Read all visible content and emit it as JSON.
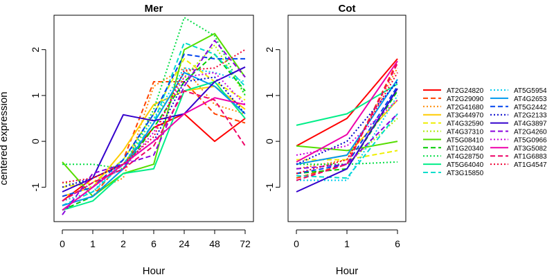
{
  "figure": {
    "ylabel": "centered expression",
    "xlabel": "Hour"
  },
  "chart_data": [
    {
      "type": "line",
      "title": "Mer",
      "xlabel": "Hour",
      "ylabel": "centered expression",
      "categories": [
        "0",
        "1",
        "2",
        "6",
        "24",
        "48",
        "72"
      ],
      "ylim": [
        -1.75,
        2.75
      ],
      "yticks": [
        -1,
        0,
        1,
        2
      ],
      "grid": false,
      "series": [
        {
          "name": "AT2G24820",
          "color": "#ff0000",
          "dash": "solid",
          "values": [
            -1.3,
            -0.8,
            -0.5,
            0.3,
            0.6,
            0.0,
            0.5
          ]
        },
        {
          "name": "AT2G29090",
          "color": "#ff4400",
          "dash": "dashed",
          "values": [
            -1.4,
            -1.2,
            -0.4,
            1.3,
            1.3,
            0.6,
            0.4
          ]
        },
        {
          "name": "AT2G41680",
          "color": "#ff8800",
          "dash": "dotted",
          "values": [
            -1.3,
            -1.1,
            -0.8,
            1.2,
            1.6,
            0.8,
            0.6
          ]
        },
        {
          "name": "AT3G44970",
          "color": "#ffcc00",
          "dash": "solid",
          "values": [
            -1.2,
            -1.0,
            -0.2,
            0.8,
            1.1,
            1.2,
            0.7
          ]
        },
        {
          "name": "AT4G32590",
          "color": "#eeee00",
          "dash": "dashed",
          "values": [
            -1.0,
            -0.9,
            -0.4,
            0.6,
            1.8,
            1.3,
            0.9
          ]
        },
        {
          "name": "AT4G37310",
          "color": "#aaee00",
          "dash": "dotted",
          "values": [
            -0.9,
            -1.0,
            -0.5,
            0.5,
            1.4,
            2.1,
            1.0
          ]
        },
        {
          "name": "AT5G08410",
          "color": "#55dd00",
          "dash": "solid",
          "values": [
            -0.45,
            -1.2,
            -0.7,
            -0.5,
            2.0,
            2.35,
            1.4
          ]
        },
        {
          "name": "AT1G20340",
          "color": "#00cc00",
          "dash": "dashed",
          "values": [
            -1.5,
            -1.2,
            -0.6,
            0.3,
            1.3,
            1.9,
            1.1
          ]
        },
        {
          "name": "AT4G28750",
          "color": "#00dd44",
          "dash": "dotted",
          "values": [
            -0.5,
            -0.5,
            -0.6,
            0.7,
            2.7,
            2.3,
            1.0
          ]
        },
        {
          "name": "AT5G64040",
          "color": "#00ee88",
          "dash": "solid",
          "values": [
            -1.5,
            -1.3,
            -0.7,
            -0.6,
            1.1,
            1.3,
            0.5
          ]
        },
        {
          "name": "AT3G15850",
          "color": "#00ddcc",
          "dash": "dashed",
          "values": [
            -1.4,
            -1.1,
            -0.5,
            0.4,
            2.15,
            1.9,
            1.2
          ]
        },
        {
          "name": "AT5G5954",
          "color": "#00ccee",
          "dash": "dotted",
          "values": [
            -1.3,
            -1.1,
            -0.4,
            0.5,
            1.6,
            1.5,
            1.3
          ]
        },
        {
          "name": "AT4G2653",
          "color": "#0099ee",
          "dash": "solid",
          "values": [
            -1.4,
            -1.2,
            -0.6,
            0.4,
            1.5,
            1.2,
            0.6
          ]
        },
        {
          "name": "AT5G2442",
          "color": "#0044ee",
          "dash": "dashed",
          "values": [
            -1.2,
            -1.0,
            -0.4,
            0.6,
            1.9,
            1.8,
            1.8
          ]
        },
        {
          "name": "AT2G2133",
          "color": "#0000cc",
          "dash": "dotted",
          "values": [
            -1.0,
            -0.8,
            -0.5,
            0.0,
            1.3,
            1.4,
            0.6
          ]
        },
        {
          "name": "AT4G3897",
          "color": "#3300cc",
          "dash": "solid",
          "values": [
            -1.1,
            -0.8,
            0.58,
            0.45,
            0.6,
            1.3,
            1.62
          ]
        },
        {
          "name": "AT2G4260",
          "color": "#8800dd",
          "dash": "dashed",
          "values": [
            -1.6,
            -0.7,
            -0.5,
            -0.3,
            1.2,
            2.2,
            1.4
          ]
        },
        {
          "name": "AT5G0966",
          "color": "#cc00dd",
          "dash": "dotted",
          "values": [
            -1.3,
            -0.9,
            -0.6,
            0.2,
            1.4,
            1.5,
            0.8
          ]
        },
        {
          "name": "AT3G5082",
          "color": "#ee00aa",
          "dash": "solid",
          "values": [
            -1.5,
            -1.0,
            -0.5,
            0.0,
            0.6,
            0.95,
            0.8
          ]
        },
        {
          "name": "AT1G6883",
          "color": "#ee0066",
          "dash": "dashed",
          "values": [
            -1.3,
            -0.9,
            -0.6,
            -0.1,
            1.1,
            0.9,
            -0.1
          ]
        },
        {
          "name": "AT1G4547",
          "color": "#ee0033",
          "dash": "dotted",
          "values": [
            -0.9,
            -0.8,
            -0.5,
            0.1,
            1.55,
            1.6,
            2.0
          ]
        }
      ]
    },
    {
      "type": "line",
      "title": "Cot",
      "xlabel": "Hour",
      "categories": [
        "0",
        "1",
        "6"
      ],
      "ylim": [
        -1.75,
        2.75
      ],
      "yticks": [
        -1,
        0,
        1,
        2
      ],
      "grid": false,
      "series": [
        {
          "name": "AT2G24820",
          "color": "#ff0000",
          "dash": "solid",
          "values": [
            -0.1,
            0.5,
            1.8
          ]
        },
        {
          "name": "AT2G29090",
          "color": "#ff4400",
          "dash": "dashed",
          "values": [
            -0.8,
            -0.5,
            1.75
          ]
        },
        {
          "name": "AT2G41680",
          "color": "#ff8800",
          "dash": "dotted",
          "values": [
            -0.6,
            -0.4,
            1.6
          ]
        },
        {
          "name": "AT3G44970",
          "color": "#ffcc00",
          "dash": "solid",
          "values": [
            -0.5,
            -0.3,
            0.9
          ]
        },
        {
          "name": "AT4G32590",
          "color": "#eeee00",
          "dash": "dashed",
          "values": [
            -0.4,
            -0.4,
            -0.2
          ]
        },
        {
          "name": "AT4G37310",
          "color": "#aaee00",
          "dash": "dotted",
          "values": [
            -0.5,
            -0.5,
            0.5
          ]
        },
        {
          "name": "AT5G08410",
          "color": "#55dd00",
          "dash": "solid",
          "values": [
            -0.1,
            -0.2,
            0.0
          ]
        },
        {
          "name": "AT1G20340",
          "color": "#00cc00",
          "dash": "dashed",
          "values": [
            -0.7,
            -0.6,
            1.1
          ]
        },
        {
          "name": "AT4G28750",
          "color": "#00dd44",
          "dash": "dotted",
          "values": [
            -0.5,
            -0.5,
            -0.45
          ]
        },
        {
          "name": "AT5G64040",
          "color": "#00ee88",
          "dash": "solid",
          "values": [
            0.35,
            0.6,
            1.25
          ]
        },
        {
          "name": "AT3G15850",
          "color": "#00ddcc",
          "dash": "dashed",
          "values": [
            -0.75,
            -0.8,
            0.6
          ]
        },
        {
          "name": "AT5G5954",
          "color": "#00ccee",
          "dash": "dotted",
          "values": [
            -0.85,
            -0.85,
            1.0
          ]
        },
        {
          "name": "AT4G2653",
          "color": "#0099ee",
          "dash": "solid",
          "values": [
            -0.5,
            -0.3,
            1.35
          ]
        },
        {
          "name": "AT5G2442",
          "color": "#0044ee",
          "dash": "dashed",
          "values": [
            -0.7,
            -0.5,
            1.2
          ]
        },
        {
          "name": "AT2G2133",
          "color": "#0000cc",
          "dash": "dotted",
          "values": [
            -0.5,
            0.0,
            1.3
          ]
        },
        {
          "name": "AT4G3897",
          "color": "#3300cc",
          "dash": "solid",
          "values": [
            -1.1,
            -0.6,
            1.15
          ]
        },
        {
          "name": "AT2G4260",
          "color": "#8800dd",
          "dash": "dashed",
          "values": [
            -0.6,
            -0.5,
            0.6
          ]
        },
        {
          "name": "AT5G0966",
          "color": "#cc00dd",
          "dash": "dotted",
          "values": [
            -0.3,
            -0.1,
            0.9
          ]
        },
        {
          "name": "AT3G5082",
          "color": "#ee00aa",
          "dash": "solid",
          "values": [
            -0.45,
            0.15,
            1.75
          ]
        },
        {
          "name": "AT1G6883",
          "color": "#ee0066",
          "dash": "dashed",
          "values": [
            -0.85,
            -0.5,
            1.7
          ]
        },
        {
          "name": "AT1G4547",
          "color": "#ee0033",
          "dash": "dotted",
          "values": [
            -0.7,
            -0.4,
            1.5
          ]
        }
      ]
    }
  ]
}
